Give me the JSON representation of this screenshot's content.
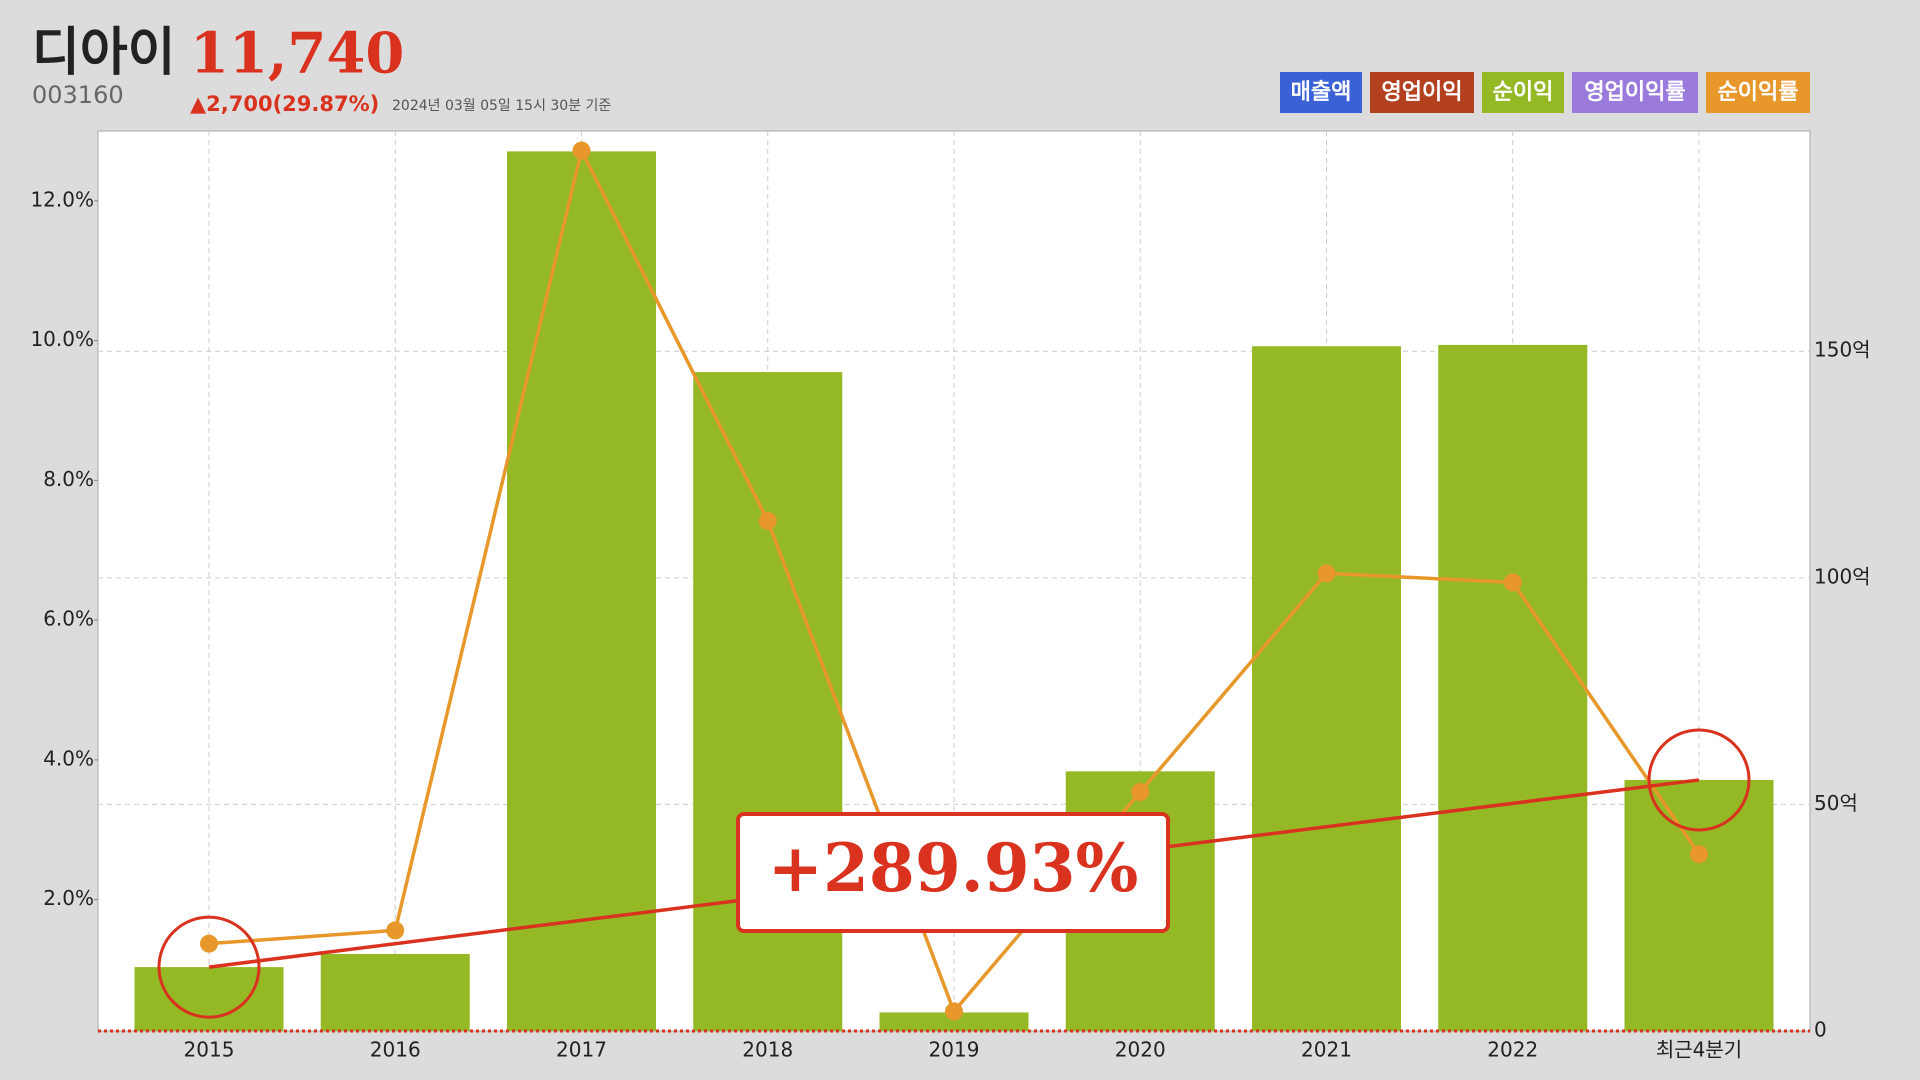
{
  "chart_data": {
    "type": "bar-line",
    "title": "디아이",
    "price": "11,740",
    "code": "003160",
    "change": "▲2,700(29.87%)",
    "timestamp": "2024년 03월 05일 15시 30분 기준",
    "annotation": "+289.93%",
    "legend": [
      {
        "name": "매출액",
        "color": "#3a62d6"
      },
      {
        "name": "영업이익",
        "color": "#b3401e"
      },
      {
        "name": "순이익",
        "color": "#95b825"
      },
      {
        "name": "영업이익률",
        "color": "#9a7bdc"
      },
      {
        "name": "순이익률",
        "color": "#e8972a"
      }
    ],
    "categories": [
      "2015",
      "2016",
      "2017",
      "2018",
      "2019",
      "2020",
      "2021",
      "2022",
      "최근4분기"
    ],
    "series": [
      {
        "color": "#95b825",
        "axis": "y2",
        "values": [
          14.1,
          17.0,
          194.1,
          145.4,
          4.1,
          57.3,
          151.1,
          151.4,
          55.4
        ]
      },
      {
        "color": "#e8972a",
        "axis": "y",
        "values": [
          1.37,
          1.56,
          12.72,
          7.42,
          0.4,
          3.54,
          6.67,
          6.54,
          2.65
        ]
      }
    ],
    "ylim": [
      0.12,
      13.0
    ],
    "yticks": [
      {
        "value": 2,
        "label": "2.0%"
      },
      {
        "value": 4,
        "label": "4.0%"
      },
      {
        "value": 6,
        "label": "6.0%"
      },
      {
        "value": 8,
        "label": "8.0%"
      },
      {
        "value": 10,
        "label": "10.0%"
      },
      {
        "value": 12,
        "label": "12.0%"
      }
    ],
    "y2lim": [
      0,
      198.6
    ],
    "y2ticks": [
      0,
      {
        "value": 50,
        "label": "50억"
      },
      {
        "value": 100,
        "label": "100억"
      },
      {
        "value": 150,
        "label": "150억"
      }
    ],
    "grid": true
  }
}
